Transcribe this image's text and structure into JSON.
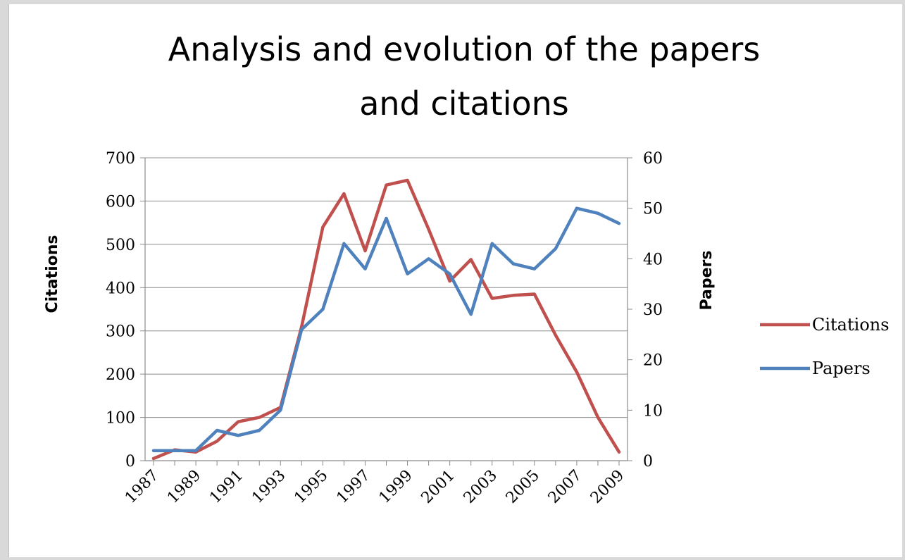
{
  "colors": {
    "citations": "#c0504d",
    "papers": "#4f81bd"
  },
  "chart_data": {
    "type": "line",
    "title_lines": [
      "Analysis and evolution of the papers",
      "and citations"
    ],
    "x": [
      1987,
      1988,
      1989,
      1990,
      1991,
      1992,
      1993,
      1994,
      1995,
      1996,
      1997,
      1998,
      1999,
      2000,
      2001,
      2002,
      2003,
      2004,
      2005,
      2006,
      2007,
      2008,
      2009
    ],
    "x_tick_labels": [
      "1987",
      "1989",
      "1991",
      "1993",
      "1995",
      "1997",
      "1999",
      "2001",
      "2003",
      "2005",
      "2007",
      "2009"
    ],
    "ylabel": "Citations",
    "ylabel_right": "Papers",
    "ylim": [
      0,
      700
    ],
    "ylim_right": [
      0,
      60
    ],
    "y_ticks": [
      "0",
      "100",
      "200",
      "300",
      "400",
      "500",
      "600",
      "700"
    ],
    "y_ticks_right": [
      "0",
      "10",
      "20",
      "30",
      "40",
      "50",
      "60"
    ],
    "grid": "horizontal",
    "legend_position": "right",
    "series": [
      {
        "name": "Citations",
        "axis": "left",
        "values": [
          5,
          25,
          20,
          45,
          90,
          100,
          123,
          310,
          540,
          617,
          485,
          637,
          648,
          535,
          415,
          465,
          375,
          382,
          385,
          290,
          205,
          100,
          20
        ]
      },
      {
        "name": "Papers",
        "axis": "right",
        "values": [
          2,
          2,
          2,
          6,
          5,
          6,
          10,
          26,
          30,
          43,
          38,
          48,
          37,
          40,
          37,
          29,
          43,
          39,
          38,
          42,
          50,
          49,
          47
        ]
      }
    ]
  }
}
